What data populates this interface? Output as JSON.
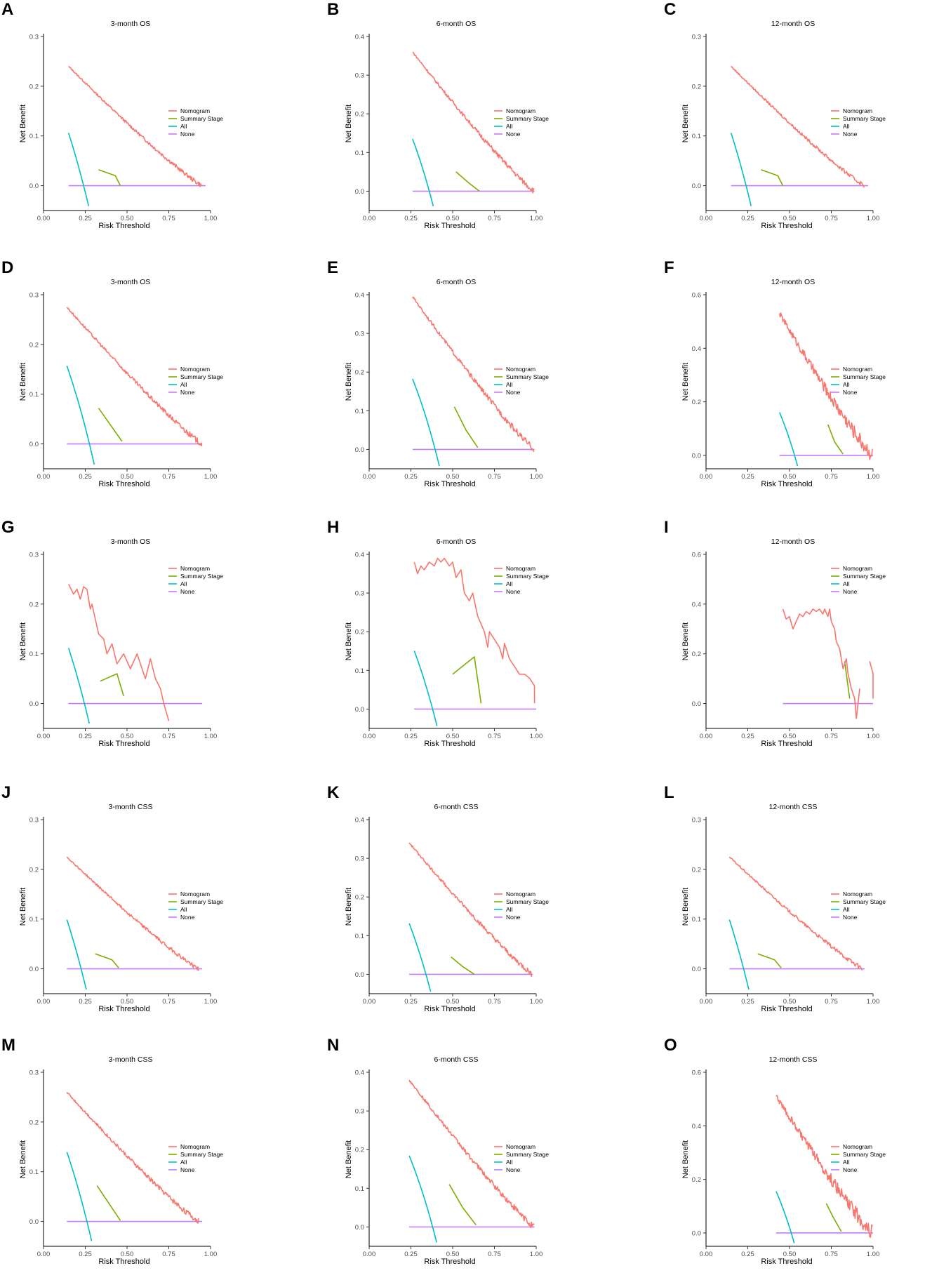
{
  "colors": {
    "nomogram": "#F8766D",
    "summary_stage": "#7CAE00",
    "all": "#00BFC4",
    "none": "#C77CFF"
  },
  "chart_data": [
    {
      "id": "A",
      "type": "line",
      "title": "3-month OS",
      "xlabel": "Risk Threshold",
      "ylabel": "Net Benefit",
      "xlim": [
        0,
        1
      ],
      "ylim": [
        -0.05,
        0.3
      ],
      "xticks": [
        "0.00",
        "0.25",
        "0.50",
        "0.75",
        "1.00"
      ],
      "yticks": [
        "0.0",
        "0.1",
        "0.2",
        "0.3"
      ],
      "legend": [
        "Nomogram",
        "Summary Stage",
        "All",
        "None"
      ],
      "prev": 0.24,
      "x0": 0.15,
      "nom_end": 0.95,
      "ss": [
        [
          0.33,
          0.032
        ],
        [
          0.43,
          0.02
        ],
        [
          0.46,
          0
        ]
      ],
      "none": [
        0.15,
        0.97
      ],
      "noise": 0.003
    },
    {
      "id": "B",
      "type": "line",
      "title": "6-month OS",
      "xlabel": "Risk Threshold",
      "ylabel": "Net Benefit",
      "xlim": [
        0,
        1
      ],
      "ylim": [
        -0.05,
        0.4
      ],
      "xticks": [
        "0.00",
        "0.25",
        "0.50",
        "0.75",
        "1.00"
      ],
      "yticks": [
        "0.0",
        "0.1",
        "0.2",
        "0.3",
        "0.4"
      ],
      "legend": [
        "Nomogram",
        "Summary Stage",
        "All",
        "None"
      ],
      "prev": 0.36,
      "x0": 0.26,
      "nom_end": 0.99,
      "ss": [
        [
          0.52,
          0.05
        ],
        [
          0.6,
          0.02
        ],
        [
          0.66,
          0
        ]
      ],
      "none": [
        0.26,
        0.99
      ],
      "noise": 0.005
    },
    {
      "id": "C",
      "type": "line",
      "title": "12-month OS",
      "xlabel": "Risk Threshold",
      "ylabel": "Net Benefit",
      "xlim": [
        0,
        1
      ],
      "ylim": [
        -0.05,
        0.3
      ],
      "xticks": [
        "0.00",
        "0.25",
        "0.50",
        "0.75",
        "1.00"
      ],
      "yticks": [
        "0.0",
        "0.1",
        "0.2",
        "0.3"
      ],
      "legend": [
        "Nomogram",
        "Summary Stage",
        "All",
        "None"
      ],
      "prev": 0.24,
      "x0": 0.15,
      "nom_end": 0.95,
      "ss": [
        [
          0.33,
          0.032
        ],
        [
          0.43,
          0.02
        ],
        [
          0.46,
          0
        ]
      ],
      "none": [
        0.15,
        0.97
      ],
      "noise": 0.003
    },
    {
      "id": "D",
      "type": "line",
      "title": "3-month OS",
      "xlabel": "Risk Threshold",
      "ylabel": "Net Benefit",
      "xlim": [
        0,
        1
      ],
      "ylim": [
        -0.05,
        0.3
      ],
      "xticks": [
        "0.00",
        "0.25",
        "0.50",
        "0.75",
        "1.00"
      ],
      "yticks": [
        "0.0",
        "0.1",
        "0.2",
        "0.3"
      ],
      "legend": [
        "Nomogram",
        "Summary Stage",
        "All",
        "None"
      ],
      "prev": 0.275,
      "x0": 0.14,
      "nom_end": 0.95,
      "ss": [
        [
          0.33,
          0.072
        ],
        [
          0.47,
          0.005
        ]
      ],
      "none": [
        0.14,
        0.95
      ],
      "noise": 0.004
    },
    {
      "id": "E",
      "type": "line",
      "title": "6-month OS",
      "xlabel": "Risk Threshold",
      "ylabel": "Net Benefit",
      "xlim": [
        0,
        1
      ],
      "ylim": [
        -0.05,
        0.4
      ],
      "xticks": [
        "0.00",
        "0.25",
        "0.50",
        "0.75",
        "1.00"
      ],
      "yticks": [
        "0.0",
        "0.1",
        "0.2",
        "0.3",
        "0.4"
      ],
      "legend": [
        "Nomogram",
        "Summary Stage",
        "All",
        "None"
      ],
      "prev": 0.395,
      "x0": 0.26,
      "nom_end": 0.99,
      "ss": [
        [
          0.51,
          0.11
        ],
        [
          0.58,
          0.05
        ],
        [
          0.65,
          0.005
        ]
      ],
      "none": [
        0.26,
        0.99
      ],
      "noise": 0.006
    },
    {
      "id": "F",
      "type": "line",
      "title": "12-month OS",
      "xlabel": "Risk Threshold",
      "ylabel": "Net Benefit",
      "xlim": [
        0,
        1
      ],
      "ylim": [
        -0.05,
        0.6
      ],
      "xticks": [
        "0.00",
        "0.25",
        "0.50",
        "0.75",
        "1.00"
      ],
      "yticks": [
        "0.0",
        "0.2",
        "0.4",
        "0.6"
      ],
      "legend": [
        "Nomogram",
        "Summary Stage",
        "All",
        "None"
      ],
      "prev": 0.53,
      "x0": 0.44,
      "nom_end": 1.0,
      "ss": [
        [
          0.73,
          0.115
        ],
        [
          0.77,
          0.05
        ],
        [
          0.82,
          0.005
        ]
      ],
      "none": [
        0.44,
        1.0
      ],
      "noise": 0.02
    },
    {
      "id": "G",
      "type": "line",
      "title": "3-month OS",
      "xlabel": "Risk Threshold",
      "ylabel": "Net Benefit",
      "xlim": [
        0,
        1
      ],
      "ylim": [
        -0.05,
        0.3
      ],
      "xticks": [
        "0.00",
        "0.25",
        "0.50",
        "0.75",
        "1.00"
      ],
      "yticks": [
        "0.0",
        "0.1",
        "0.2",
        "0.3"
      ],
      "legend": [
        "Nomogram",
        "Summary Stage",
        "All",
        "None"
      ],
      "prev": 0.245,
      "x0": 0.15,
      "nom_pts": [
        [
          0.15,
          0.24
        ],
        [
          0.18,
          0.22
        ],
        [
          0.2,
          0.23
        ],
        [
          0.22,
          0.21
        ],
        [
          0.24,
          0.235
        ],
        [
          0.26,
          0.23
        ],
        [
          0.28,
          0.19
        ],
        [
          0.29,
          0.2
        ],
        [
          0.31,
          0.17
        ],
        [
          0.33,
          0.14
        ],
        [
          0.36,
          0.13
        ],
        [
          0.38,
          0.1
        ],
        [
          0.41,
          0.12
        ],
        [
          0.44,
          0.08
        ],
        [
          0.48,
          0.1
        ],
        [
          0.52,
          0.07
        ],
        [
          0.56,
          0.1
        ],
        [
          0.59,
          0.07
        ],
        [
          0.61,
          0.05
        ],
        [
          0.64,
          0.09
        ],
        [
          0.67,
          0.05
        ],
        [
          0.7,
          0.03
        ],
        [
          0.72,
          0
        ],
        [
          0.75,
          -0.035
        ]
      ],
      "ss": [
        [
          0.34,
          0.045
        ],
        [
          0.44,
          0.06
        ],
        [
          0.48,
          0.015
        ]
      ],
      "none": [
        0.15,
        0.95
      ]
    },
    {
      "id": "H",
      "type": "line",
      "title": "6-month OS",
      "xlabel": "Risk Threshold",
      "ylabel": "Net Benefit",
      "xlim": [
        0,
        1
      ],
      "ylim": [
        -0.05,
        0.4
      ],
      "xticks": [
        "0.00",
        "0.25",
        "0.50",
        "0.75",
        "1.00"
      ],
      "yticks": [
        "0.0",
        "0.1",
        "0.2",
        "0.3",
        "0.4"
      ],
      "legend": [
        "Nomogram",
        "Summary Stage",
        "All",
        "None"
      ],
      "prev": 0.38,
      "x0": 0.27,
      "nom_pts": [
        [
          0.27,
          0.38
        ],
        [
          0.29,
          0.35
        ],
        [
          0.31,
          0.37
        ],
        [
          0.33,
          0.36
        ],
        [
          0.36,
          0.38
        ],
        [
          0.39,
          0.37
        ],
        [
          0.41,
          0.39
        ],
        [
          0.43,
          0.38
        ],
        [
          0.45,
          0.39
        ],
        [
          0.48,
          0.37
        ],
        [
          0.5,
          0.38
        ],
        [
          0.52,
          0.34
        ],
        [
          0.55,
          0.36
        ],
        [
          0.57,
          0.3
        ],
        [
          0.6,
          0.28
        ],
        [
          0.62,
          0.3
        ],
        [
          0.65,
          0.24
        ],
        [
          0.67,
          0.22
        ],
        [
          0.69,
          0.2
        ],
        [
          0.71,
          0.16
        ],
        [
          0.72,
          0.2
        ],
        [
          0.75,
          0.18
        ],
        [
          0.78,
          0.16
        ],
        [
          0.8,
          0.13
        ],
        [
          0.81,
          0.17
        ],
        [
          0.84,
          0.13
        ],
        [
          0.87,
          0.11
        ],
        [
          0.9,
          0.09
        ],
        [
          0.93,
          0.09
        ],
        [
          0.96,
          0.08
        ],
        [
          0.99,
          0.06
        ],
        [
          0.99,
          0.015
        ]
      ],
      "ss": [
        [
          0.5,
          0.09
        ],
        [
          0.63,
          0.135
        ],
        [
          0.67,
          0.015
        ]
      ],
      "none": [
        0.27,
        1.0
      ]
    },
    {
      "id": "I",
      "type": "line",
      "title": "12-month OS",
      "xlabel": "Risk Threshold",
      "ylabel": "Net Benefit",
      "xlim": [
        0,
        1
      ],
      "ylim": [
        -0.1,
        0.6
      ],
      "xticks": [
        "0.00",
        "0.25",
        "0.50",
        "0.75",
        "1.00"
      ],
      "yticks": [
        "0.0",
        "0.2",
        "0.4",
        "0.6"
      ],
      "legend": [
        "Nomogram",
        "Summary Stage",
        "All",
        "None"
      ],
      "prev": 0.38,
      "x0": 0.46,
      "nom_pts": [
        [
          0.46,
          0.38
        ],
        [
          0.48,
          0.34
        ],
        [
          0.5,
          0.35
        ],
        [
          0.52,
          0.3
        ],
        [
          0.54,
          0.33
        ],
        [
          0.56,
          0.36
        ],
        [
          0.58,
          0.35
        ],
        [
          0.6,
          0.37
        ],
        [
          0.62,
          0.36
        ],
        [
          0.64,
          0.38
        ],
        [
          0.66,
          0.37
        ],
        [
          0.68,
          0.38
        ],
        [
          0.7,
          0.36
        ],
        [
          0.71,
          0.38
        ],
        [
          0.73,
          0.35
        ],
        [
          0.74,
          0.38
        ],
        [
          0.75,
          0.33
        ],
        [
          0.77,
          0.3
        ],
        [
          0.78,
          0.25
        ],
        [
          0.8,
          0.22
        ],
        [
          0.82,
          0.14
        ],
        [
          0.84,
          0.18
        ],
        [
          0.85,
          0.12
        ],
        [
          0.87,
          0.06
        ],
        [
          0.89,
          0.02
        ],
        [
          0.9,
          -0.06
        ],
        [
          0.92,
          0.06
        ]
      ],
      "nom_pts2": [
        [
          0.98,
          0.17
        ],
        [
          1.0,
          0.12
        ],
        [
          1.0,
          0.02
        ]
      ],
      "ss": [
        [
          0.83,
          0.17
        ],
        [
          0.86,
          0.02
        ]
      ],
      "none": [
        0.46,
        1.0
      ]
    },
    {
      "id": "J",
      "type": "line",
      "title": "3-month CSS",
      "xlabel": "Risk Threshold",
      "ylabel": "Net Benefit",
      "xlim": [
        0,
        1
      ],
      "ylim": [
        -0.05,
        0.3
      ],
      "xticks": [
        "0.00",
        "0.25",
        "0.50",
        "0.75",
        "1.00"
      ],
      "yticks": [
        "0.0",
        "0.1",
        "0.2",
        "0.3"
      ],
      "legend": [
        "Nomogram",
        "Summary Stage",
        "All",
        "None"
      ],
      "prev": 0.225,
      "x0": 0.14,
      "nom_end": 0.93,
      "ss": [
        [
          0.31,
          0.03
        ],
        [
          0.41,
          0.018
        ],
        [
          0.45,
          0.002
        ]
      ],
      "none": [
        0.14,
        0.95
      ],
      "noise": 0.003
    },
    {
      "id": "K",
      "type": "line",
      "title": "6-month CSS",
      "xlabel": "Risk Threshold",
      "ylabel": "Net Benefit",
      "xlim": [
        0,
        1
      ],
      "ylim": [
        -0.05,
        0.4
      ],
      "xticks": [
        "0.00",
        "0.25",
        "0.50",
        "0.75",
        "1.00"
      ],
      "yticks": [
        "0.0",
        "0.1",
        "0.2",
        "0.3",
        "0.4"
      ],
      "legend": [
        "Nomogram",
        "Summary Stage",
        "All",
        "None"
      ],
      "prev": 0.34,
      "x0": 0.24,
      "nom_end": 0.98,
      "ss": [
        [
          0.49,
          0.045
        ],
        [
          0.56,
          0.02
        ],
        [
          0.63,
          0
        ]
      ],
      "none": [
        0.24,
        0.98
      ],
      "noise": 0.005
    },
    {
      "id": "L",
      "type": "line",
      "title": "12-month CSS",
      "xlabel": "Risk Threshold",
      "ylabel": "Net Benefit",
      "xlim": [
        0,
        1
      ],
      "ylim": [
        -0.05,
        0.3
      ],
      "xticks": [
        "0.00",
        "0.25",
        "0.50",
        "0.75",
        "1.00"
      ],
      "yticks": [
        "0.0",
        "0.1",
        "0.2",
        "0.3"
      ],
      "legend": [
        "Nomogram",
        "Summary Stage",
        "All",
        "None"
      ],
      "prev": 0.225,
      "x0": 0.14,
      "nom_end": 0.94,
      "ss": [
        [
          0.31,
          0.03
        ],
        [
          0.41,
          0.018
        ],
        [
          0.45,
          0.002
        ]
      ],
      "none": [
        0.14,
        0.95
      ],
      "noise": 0.003
    },
    {
      "id": "M",
      "type": "line",
      "title": "3-month CSS",
      "xlabel": "Risk Threshold",
      "ylabel": "Net Benefit",
      "xlim": [
        0,
        1
      ],
      "ylim": [
        -0.05,
        0.3
      ],
      "xticks": [
        "0.00",
        "0.25",
        "0.50",
        "0.75",
        "1.00"
      ],
      "yticks": [
        "0.0",
        "0.1",
        "0.2",
        "0.3"
      ],
      "legend": [
        "Nomogram",
        "Summary Stage",
        "All",
        "None"
      ],
      "prev": 0.26,
      "x0": 0.14,
      "nom_end": 0.93,
      "ss": [
        [
          0.32,
          0.072
        ],
        [
          0.46,
          0.002
        ]
      ],
      "none": [
        0.14,
        0.95
      ],
      "noise": 0.004
    },
    {
      "id": "N",
      "type": "line",
      "title": "6-month CSS",
      "xlabel": "Risk Threshold",
      "ylabel": "Net Benefit",
      "xlim": [
        0,
        1
      ],
      "ylim": [
        -0.05,
        0.4
      ],
      "xticks": [
        "0.00",
        "0.25",
        "0.50",
        "0.75",
        "1.00"
      ],
      "yticks": [
        "0.0",
        "0.1",
        "0.2",
        "0.3",
        "0.4"
      ],
      "legend": [
        "Nomogram",
        "Summary Stage",
        "All",
        "None"
      ],
      "prev": 0.38,
      "x0": 0.24,
      "nom_end": 0.99,
      "ss": [
        [
          0.48,
          0.11
        ],
        [
          0.56,
          0.05
        ],
        [
          0.64,
          0.005
        ]
      ],
      "none": [
        0.24,
        0.99
      ],
      "noise": 0.006
    },
    {
      "id": "O",
      "type": "line",
      "title": "12-month CSS",
      "xlabel": "Risk Threshold",
      "ylabel": "Net Benefit",
      "xlim": [
        0,
        1
      ],
      "ylim": [
        -0.05,
        0.6
      ],
      "xticks": [
        "0.00",
        "0.25",
        "0.50",
        "0.75",
        "1.00"
      ],
      "yticks": [
        "0.0",
        "0.2",
        "0.4",
        "0.6"
      ],
      "legend": [
        "Nomogram",
        "Summary Stage",
        "All",
        "None"
      ],
      "prev": 0.51,
      "x0": 0.42,
      "nom_end": 1.0,
      "ss": [
        [
          0.72,
          0.11
        ],
        [
          0.76,
          0.06
        ],
        [
          0.81,
          0.005
        ]
      ],
      "none": [
        0.42,
        1.0
      ],
      "noise": 0.02
    }
  ]
}
